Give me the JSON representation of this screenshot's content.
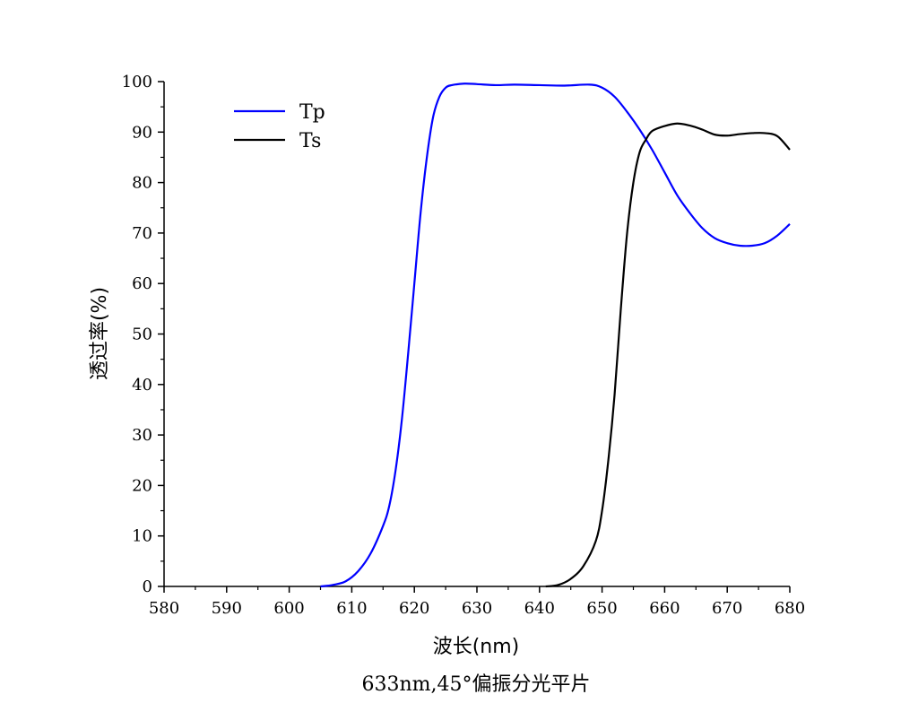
{
  "chart_data": {
    "type": "line",
    "title": "633nm,45°偏振分光平片",
    "xlabel": "波长(nm)",
    "ylabel": "透过率(%)",
    "xlim": [
      580,
      680
    ],
    "ylim": [
      0,
      100
    ],
    "xticks": [
      580,
      590,
      600,
      610,
      620,
      630,
      640,
      650,
      660,
      670,
      680
    ],
    "yticks": [
      0,
      10,
      20,
      30,
      40,
      50,
      60,
      70,
      80,
      90,
      100
    ],
    "legend_position": "top-left",
    "grid": false,
    "series": [
      {
        "name": "Tp",
        "color": "#0000ff",
        "x": [
          605,
          607,
          609,
          611,
          613,
          615,
          616,
          617,
          618,
          619,
          620,
          621,
          622,
          623,
          624,
          625,
          626,
          628,
          630,
          633,
          636,
          640,
          644,
          648,
          650,
          652,
          654,
          656,
          658,
          660,
          662,
          664,
          666,
          668,
          670,
          672,
          674,
          676,
          678,
          680
        ],
        "y": [
          0,
          0.3,
          1,
          3,
          6.5,
          12,
          16,
          23,
          33,
          46,
          60,
          74,
          85,
          93,
          97,
          98.8,
          99.3,
          99.6,
          99.5,
          99.3,
          99.4,
          99.3,
          99.2,
          99.4,
          98.8,
          97,
          94,
          90.5,
          86.5,
          82,
          77.5,
          74,
          71,
          69,
          68,
          67.5,
          67.5,
          68,
          69.5,
          71.8
        ]
      },
      {
        "name": "Ts",
        "color": "#000000",
        "x": [
          641,
          643,
          645,
          647,
          649,
          650,
          651,
          652,
          653,
          654,
          655,
          656,
          657,
          658,
          660,
          662,
          664,
          666,
          668,
          670,
          672,
          674,
          676,
          678,
          680
        ],
        "y": [
          0,
          0.3,
          1.5,
          4,
          9,
          15,
          25,
          38,
          55,
          70,
          80,
          86,
          88.5,
          90.2,
          91.2,
          91.7,
          91.3,
          90.5,
          89.5,
          89.3,
          89.6,
          89.8,
          89.8,
          89.2,
          86.5
        ]
      }
    ]
  }
}
